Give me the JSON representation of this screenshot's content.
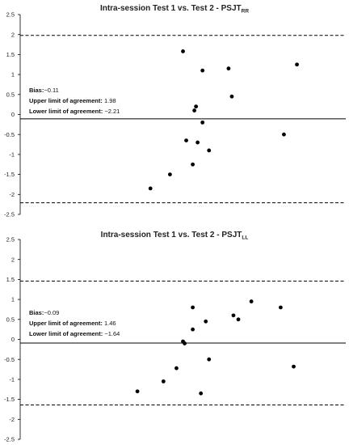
{
  "chart_data": [
    {
      "type": "scatter",
      "title": "Intra-session Test 1 vs. Test 2 - PSJT",
      "title_subscript": "RR",
      "ylim": [
        -2.5,
        2.5
      ],
      "yticks": [
        "2.5",
        "2",
        "1.5",
        "1",
        "0.5",
        "0",
        "-0.5",
        "-1",
        "-1.5",
        "-2",
        "-2.5"
      ],
      "xlim": [
        0,
        100
      ],
      "grid": false,
      "points": [
        {
          "x": 50,
          "y": 1.58
        },
        {
          "x": 56,
          "y": 1.1
        },
        {
          "x": 64,
          "y": 1.15
        },
        {
          "x": 85,
          "y": 1.25
        },
        {
          "x": 65,
          "y": 0.45
        },
        {
          "x": 54,
          "y": 0.2
        },
        {
          "x": 53.5,
          "y": 0.1
        },
        {
          "x": 56,
          "y": -0.2
        },
        {
          "x": 81,
          "y": -0.5
        },
        {
          "x": 51,
          "y": -0.65
        },
        {
          "x": 54.5,
          "y": -0.7
        },
        {
          "x": 58,
          "y": -0.9
        },
        {
          "x": 53,
          "y": -1.25
        },
        {
          "x": 46,
          "y": -1.5
        },
        {
          "x": 40,
          "y": -1.85
        }
      ],
      "lines": {
        "bias": -0.11,
        "upper_loa": 1.98,
        "lower_loa": -2.21
      },
      "annotation": {
        "bias_label": "Bias:",
        "bias_value": "−0.11",
        "upper_label": "Upper limit of agreement:",
        "upper_value": " 1.98",
        "lower_label": "Lower limit of agreement:",
        "lower_value": " −2.21"
      },
      "colors": {
        "points": "#000000",
        "lines": "#000000"
      }
    },
    {
      "type": "scatter",
      "title": "Intra-session Test 1 vs. Test 2 - PSJT",
      "title_subscript": "LL",
      "ylim": [
        -2.5,
        2.5
      ],
      "yticks": [
        "2.5",
        "2",
        "1.5",
        "1",
        "0.5",
        "0",
        "-0.5",
        "-1",
        "-1.5",
        "-2",
        "-2.5"
      ],
      "xlim": [
        0,
        100
      ],
      "grid": false,
      "points": [
        {
          "x": 71,
          "y": 0.95
        },
        {
          "x": 80,
          "y": 0.8
        },
        {
          "x": 53,
          "y": 0.8
        },
        {
          "x": 65.5,
          "y": 0.6
        },
        {
          "x": 67,
          "y": 0.5
        },
        {
          "x": 57,
          "y": 0.45
        },
        {
          "x": 53,
          "y": 0.25
        },
        {
          "x": 50,
          "y": -0.05
        },
        {
          "x": 50.5,
          "y": -0.1
        },
        {
          "x": 58,
          "y": -0.5
        },
        {
          "x": 84,
          "y": -0.68
        },
        {
          "x": 48,
          "y": -0.72
        },
        {
          "x": 44,
          "y": -1.05
        },
        {
          "x": 36,
          "y": -1.3
        },
        {
          "x": 55.5,
          "y": -1.35
        }
      ],
      "lines": {
        "bias": -0.09,
        "upper_loa": 1.46,
        "lower_loa": -1.64
      },
      "annotation": {
        "bias_label": "Bias:",
        "bias_value": "−0.09",
        "upper_label": "Upper limit of agreement:",
        "upper_value": " 1.46",
        "lower_label": "Lower limit of agreement:",
        "lower_value": " −1.64"
      },
      "colors": {
        "points": "#000000",
        "lines": "#000000"
      }
    }
  ]
}
